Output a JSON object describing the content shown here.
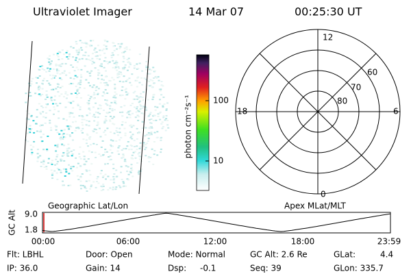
{
  "header": {
    "instrument": "Ultraviolet Imager",
    "date": "14 Mar 07",
    "time": "00:25:30 UT"
  },
  "colorbar": {
    "label": "photon cm⁻²s⁻¹",
    "ticks": [
      "100",
      "10"
    ]
  },
  "polar": {
    "mlt_labels": [
      "12",
      "18",
      "6",
      "0"
    ],
    "lat_labels": [
      "60",
      "70",
      "80"
    ]
  },
  "orbit_plot": {
    "left_label": "Geographic Lat/Lon",
    "right_label": "Apex MLat/MLT",
    "y_label": "GC Alt",
    "y_ticks": [
      "9.0",
      "1.8"
    ],
    "x_ticks": [
      "00:00",
      "06:00",
      "12:00",
      "18:00",
      "23:59"
    ]
  },
  "status": {
    "row1": [
      "Flt: LBHL",
      "Door: Open",
      "Mode: Normal",
      "GC Alt: 2.6 Re",
      "GLat:",
      "4.4"
    ],
    "row2": [
      "IP: 36.0",
      "Gain: 14",
      "Dsp:",
      "-0.1",
      "Seq: 39",
      "GLon: 335.7"
    ]
  }
}
